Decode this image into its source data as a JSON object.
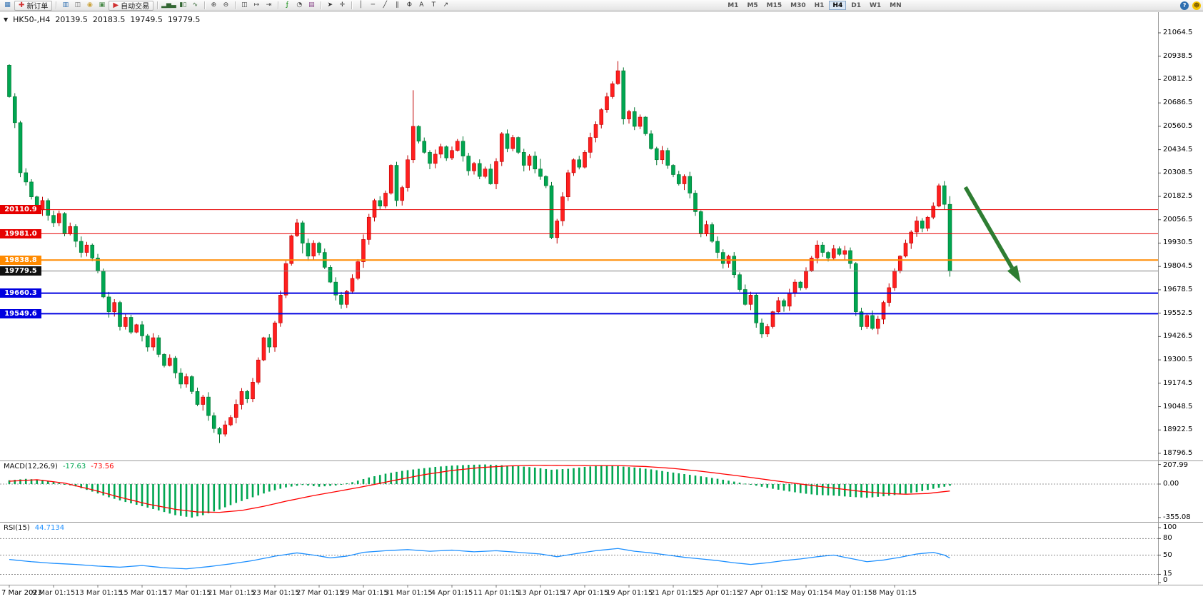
{
  "toolbar": {
    "new_order_label": "新订单",
    "auto_trading_label": "自动交易",
    "timeframes": [
      "M1",
      "M5",
      "M15",
      "M30",
      "H1",
      "H4",
      "D1",
      "W1",
      "MN"
    ],
    "active_timeframe": "H4",
    "items": [
      {
        "name": "new-chart-icon",
        "glyph": "▦",
        "color": "#2f6fb0"
      },
      {
        "name": "new-order-button",
        "glyph": "✚",
        "color": "#d03030",
        "label": "新订单"
      },
      {
        "sep": true
      },
      {
        "name": "market-watch-icon",
        "glyph": "▥",
        "color": "#2f6fb0"
      },
      {
        "name": "data-window-icon",
        "glyph": "◫",
        "color": "#6a6a6a"
      },
      {
        "name": "navigator-icon",
        "glyph": "◉",
        "color": "#caa23a"
      },
      {
        "name": "terminal-icon",
        "glyph": "▣",
        "color": "#4a8a4a"
      },
      {
        "name": "autotrading-button",
        "glyph": "▶",
        "color": "#d03030",
        "label": "自动交易"
      },
      {
        "sep": true
      },
      {
        "name": "bar-chart-icon",
        "glyph": "▂▅▃",
        "color": "#336633"
      },
      {
        "name": "candlestick-icon",
        "glyph": "▮▯",
        "color": "#336633"
      },
      {
        "name": "line-chart-icon",
        "glyph": "∿",
        "color": "#336633"
      },
      {
        "sep": true
      },
      {
        "name": "zoom-in-icon",
        "glyph": "⊕",
        "color": "#444444"
      },
      {
        "name": "zoom-out-icon",
        "glyph": "⊖",
        "color": "#444444"
      },
      {
        "sep": true
      },
      {
        "name": "tile-windows-icon",
        "glyph": "◫",
        "color": "#444444"
      },
      {
        "name": "auto-scroll-icon",
        "glyph": "↦",
        "color": "#444444"
      },
      {
        "name": "chart-shift-icon",
        "glyph": "⇥",
        "color": "#444444"
      },
      {
        "sep": true
      },
      {
        "name": "indicators-icon",
        "glyph": "ƒ",
        "color": "#0a8a0a"
      },
      {
        "name": "periods-icon",
        "glyph": "◔",
        "color": "#444444"
      },
      {
        "name": "templates-icon",
        "glyph": "▤",
        "color": "#884488"
      },
      {
        "sep": true
      },
      {
        "name": "cursor-icon",
        "glyph": "➤",
        "color": "#333333"
      },
      {
        "name": "crosshair-icon",
        "glyph": "✛",
        "color": "#333333"
      },
      {
        "sep": true
      },
      {
        "name": "vertical-line-icon",
        "glyph": "│",
        "color": "#333333"
      },
      {
        "name": "horizontal-line-icon",
        "glyph": "─",
        "color": "#333333"
      },
      {
        "name": "trendline-icon",
        "glyph": "╱",
        "color": "#333333"
      },
      {
        "name": "channel-icon",
        "glyph": "∥",
        "color": "#333333"
      },
      {
        "name": "fibonacci-icon",
        "glyph": "Φ",
        "color": "#333333"
      },
      {
        "name": "text-icon",
        "glyph": "A",
        "color": "#333333"
      },
      {
        "name": "label-icon",
        "glyph": "T",
        "color": "#333333"
      },
      {
        "name": "arrows-icon",
        "glyph": "↗",
        "color": "#333333"
      }
    ],
    "right_icons": [
      {
        "name": "help-icon",
        "glyph": "?",
        "bg": "#2f6fb0",
        "fg": "#ffffff"
      },
      {
        "name": "community-icon",
        "glyph": "☻",
        "bg": "#f5c400",
        "fg": "#7a5b00"
      }
    ]
  },
  "header": {
    "symbol": "HK50-,H4",
    "open": "20139.5",
    "high": "20183.5",
    "low": "19749.5",
    "close": "19779.5",
    "dropdown_glyph": "▼"
  },
  "price_axis": {
    "labels": [
      "21064.5",
      "20938.5",
      "20812.5",
      "20686.5",
      "20560.5",
      "20434.5",
      "20308.5",
      "20182.5",
      "20056.5",
      "19930.5",
      "19804.5",
      "19678.5",
      "19552.5",
      "19426.5",
      "19300.5",
      "19174.5",
      "19048.5",
      "18922.5",
      "18796.5"
    ]
  },
  "lines": {
    "horizontal": [
      {
        "label": "20110.9",
        "value": 20110.9,
        "color": "#e60000",
        "width": 1
      },
      {
        "label": "19981.0",
        "value": 19981.0,
        "color": "#e60000",
        "width": 1
      },
      {
        "label": "19838.8",
        "value": 19838.8,
        "color": "#ff8a00",
        "width": 2
      },
      {
        "label": "19660.3",
        "value": 19660.3,
        "color": "#0000e0",
        "width": 2
      },
      {
        "label": "19549.6",
        "value": 19549.6,
        "color": "#0000e0",
        "width": 2
      }
    ],
    "current_price": {
      "label": "19779.5",
      "value": 19779.5,
      "line_color": "#808080",
      "tag_bg": "#111111"
    }
  },
  "annotation_arrow": {
    "from_bar": 172.8,
    "from_price": 20232,
    "to_bar": 182.8,
    "to_price": 19716,
    "color": "#2e7d32"
  },
  "macd": {
    "name": "MACD(12,26,9)",
    "value_main": "-17.63",
    "value_signal": "-73.56",
    "scale_labels": [
      "207.99",
      "0.00",
      "-355.08"
    ],
    "histogram_color": "#00a651",
    "signal_color": "#ff0000"
  },
  "rsi": {
    "name": "RSI(15)",
    "value": "44.7134",
    "scale_labels": [
      "100",
      "80",
      "50",
      "15",
      "0"
    ],
    "levels": [
      80,
      50,
      15
    ],
    "line_color": "#1e90ff"
  },
  "time_axis": {
    "labels": [
      "7 Mar 2023",
      "9 Mar 01:15",
      "13 Mar 01:15",
      "15 Mar 01:15",
      "17 Mar 01:15",
      "21 Mar 01:15",
      "23 Mar 01:15",
      "27 Mar 01:15",
      "29 Mar 01:15",
      "31 Mar 01:15",
      "4 Apr 01:15",
      "11 Apr 01:15",
      "13 Apr 01:15",
      "17 Apr 01:15",
      "19 Apr 01:15",
      "21 Apr 01:15",
      "25 Apr 01:15",
      "27 Apr 01:15",
      "2 May 01:15",
      "4 May 01:15",
      "8 May 01:15"
    ]
  },
  "chart_data": {
    "type": "candlestick",
    "symbol": "HK50-",
    "timeframe": "H4",
    "title": "HK50-,H4 20139.5 20183.5 19749.5 19779.5",
    "color_convention": "red = up candle, green = down candle",
    "ylim": [
      18796.5,
      21064.5
    ],
    "first_open": 20890,
    "closes": [
      20720,
      20580,
      20310,
      20260,
      20180,
      20110,
      20160,
      20080,
      20040,
      20090,
      19980,
      20020,
      19940,
      19880,
      19920,
      19850,
      19780,
      19640,
      19560,
      19610,
      19480,
      19530,
      19450,
      19490,
      19430,
      19370,
      19420,
      19330,
      19270,
      19310,
      19230,
      19170,
      19210,
      19130,
      19060,
      19100,
      19000,
      18930,
      18900,
      18950,
      18990,
      19060,
      19130,
      19090,
      19180,
      19300,
      19420,
      19370,
      19500,
      19650,
      19820,
      19970,
      20040,
      19930,
      19860,
      19930,
      19880,
      19800,
      19720,
      19650,
      19600,
      19670,
      19740,
      19830,
      19950,
      20070,
      20160,
      20130,
      20200,
      20350,
      20160,
      20230,
      20380,
      20560,
      20480,
      20420,
      20360,
      20410,
      20450,
      20390,
      20430,
      20480,
      20400,
      20320,
      20360,
      20290,
      20330,
      20250,
      20370,
      20520,
      20440,
      20500,
      20420,
      20350,
      20400,
      20330,
      20290,
      20240,
      19960,
      20050,
      20180,
      20310,
      20380,
      20340,
      20420,
      20500,
      20570,
      20650,
      20720,
      20790,
      20860,
      20600,
      20640,
      20560,
      20610,
      20520,
      20440,
      20380,
      20430,
      20350,
      20300,
      20250,
      20290,
      20200,
      20100,
      19980,
      20030,
      19940,
      19880,
      19820,
      19860,
      19760,
      19680,
      19600,
      19650,
      19500,
      19440,
      19480,
      19560,
      19620,
      19590,
      19660,
      19720,
      19690,
      19780,
      19850,
      19920,
      19880,
      19850,
      19900,
      19870,
      19890,
      19820,
      19560,
      19480,
      19540,
      19470,
      19520,
      19610,
      19690,
      19780,
      19860,
      19930,
      19990,
      20050,
      20010,
      20070,
      20130,
      20240,
      20139.5,
      19779.5
    ],
    "last_candle_ohlc": [
      20139.5,
      20183.5,
      19749.5,
      19779.5
    ],
    "wick_boosts": {
      "38": [
        0,
        30
      ],
      "53": [
        0,
        25
      ],
      "73": [
        180,
        0
      ],
      "96": [
        40,
        0
      ],
      "110": [
        25,
        0
      ]
    },
    "colors": {
      "up_fill": "#ff1f1f",
      "up_stroke": "#bf0000",
      "down_fill": "#00a651",
      "down_stroke": "#00732f"
    },
    "macd_histogram_anchors": [
      [
        0,
        40
      ],
      [
        3,
        55
      ],
      [
        6,
        45
      ],
      [
        9,
        10
      ],
      [
        12,
        -25
      ],
      [
        15,
        -80
      ],
      [
        18,
        -140
      ],
      [
        21,
        -190
      ],
      [
        24,
        -235
      ],
      [
        27,
        -280
      ],
      [
        30,
        -330
      ],
      [
        33,
        -355.08
      ],
      [
        35,
        -330
      ],
      [
        38,
        -270
      ],
      [
        41,
        -200
      ],
      [
        44,
        -140
      ],
      [
        47,
        -80
      ],
      [
        50,
        -35
      ],
      [
        53,
        -10
      ],
      [
        56,
        -28
      ],
      [
        59,
        -15
      ],
      [
        62,
        20
      ],
      [
        65,
        70
      ],
      [
        68,
        110
      ],
      [
        71,
        140
      ],
      [
        74,
        162
      ],
      [
        77,
        182
      ],
      [
        80,
        196
      ],
      [
        83,
        204
      ],
      [
        86,
        207.99
      ],
      [
        89,
        200
      ],
      [
        92,
        190
      ],
      [
        95,
        175
      ],
      [
        98,
        152
      ],
      [
        101,
        162
      ],
      [
        104,
        182
      ],
      [
        107,
        196
      ],
      [
        110,
        190
      ],
      [
        113,
        176
      ],
      [
        116,
        156
      ],
      [
        119,
        130
      ],
      [
        122,
        106
      ],
      [
        125,
        82
      ],
      [
        128,
        56
      ],
      [
        131,
        26
      ],
      [
        134,
        -6
      ],
      [
        137,
        -40
      ],
      [
        140,
        -70
      ],
      [
        143,
        -96
      ],
      [
        146,
        -116
      ],
      [
        149,
        -122
      ],
      [
        152,
        -136
      ],
      [
        155,
        -146
      ],
      [
        158,
        -130
      ],
      [
        161,
        -110
      ],
      [
        164,
        -86
      ],
      [
        167,
        -50
      ],
      [
        170,
        -17.63
      ]
    ],
    "macd_signal_anchors": [
      [
        0,
        30
      ],
      [
        5,
        46
      ],
      [
        10,
        10
      ],
      [
        15,
        -60
      ],
      [
        20,
        -140
      ],
      [
        25,
        -212
      ],
      [
        30,
        -268
      ],
      [
        34,
        -296
      ],
      [
        38,
        -300
      ],
      [
        42,
        -280
      ],
      [
        46,
        -236
      ],
      [
        50,
        -182
      ],
      [
        55,
        -122
      ],
      [
        60,
        -70
      ],
      [
        65,
        -16
      ],
      [
        70,
        44
      ],
      [
        75,
        100
      ],
      [
        80,
        144
      ],
      [
        85,
        174
      ],
      [
        90,
        192
      ],
      [
        95,
        200
      ],
      [
        100,
        198
      ],
      [
        105,
        196
      ],
      [
        110,
        196
      ],
      [
        115,
        186
      ],
      [
        120,
        166
      ],
      [
        125,
        136
      ],
      [
        130,
        100
      ],
      [
        134,
        70
      ],
      [
        138,
        38
      ],
      [
        142,
        8
      ],
      [
        146,
        -22
      ],
      [
        150,
        -50
      ],
      [
        154,
        -78
      ],
      [
        158,
        -98
      ],
      [
        162,
        -108
      ],
      [
        166,
        -100
      ],
      [
        170,
        -73.56
      ]
    ],
    "rsi_anchors": [
      [
        0,
        42
      ],
      [
        4,
        38
      ],
      [
        8,
        35
      ],
      [
        12,
        33
      ],
      [
        16,
        30
      ],
      [
        20,
        28
      ],
      [
        24,
        31
      ],
      [
        28,
        27
      ],
      [
        32,
        25
      ],
      [
        36,
        29
      ],
      [
        40,
        34
      ],
      [
        44,
        40
      ],
      [
        48,
        48
      ],
      [
        52,
        54
      ],
      [
        55,
        50
      ],
      [
        58,
        45
      ],
      [
        61,
        48
      ],
      [
        64,
        55
      ],
      [
        68,
        58
      ],
      [
        72,
        60
      ],
      [
        76,
        57
      ],
      [
        80,
        59
      ],
      [
        84,
        56
      ],
      [
        88,
        58
      ],
      [
        92,
        55
      ],
      [
        96,
        52
      ],
      [
        99,
        47
      ],
      [
        102,
        52
      ],
      [
        106,
        58
      ],
      [
        110,
        62
      ],
      [
        113,
        57
      ],
      [
        116,
        54
      ],
      [
        119,
        50
      ],
      [
        122,
        46
      ],
      [
        125,
        43
      ],
      [
        128,
        40
      ],
      [
        131,
        36
      ],
      [
        134,
        33
      ],
      [
        137,
        36
      ],
      [
        140,
        40
      ],
      [
        143,
        43
      ],
      [
        146,
        47
      ],
      [
        149,
        50
      ],
      [
        152,
        44
      ],
      [
        155,
        38
      ],
      [
        158,
        41
      ],
      [
        161,
        46
      ],
      [
        164,
        52
      ],
      [
        167,
        55
      ],
      [
        169,
        50
      ],
      [
        170,
        44.71
      ]
    ]
  }
}
